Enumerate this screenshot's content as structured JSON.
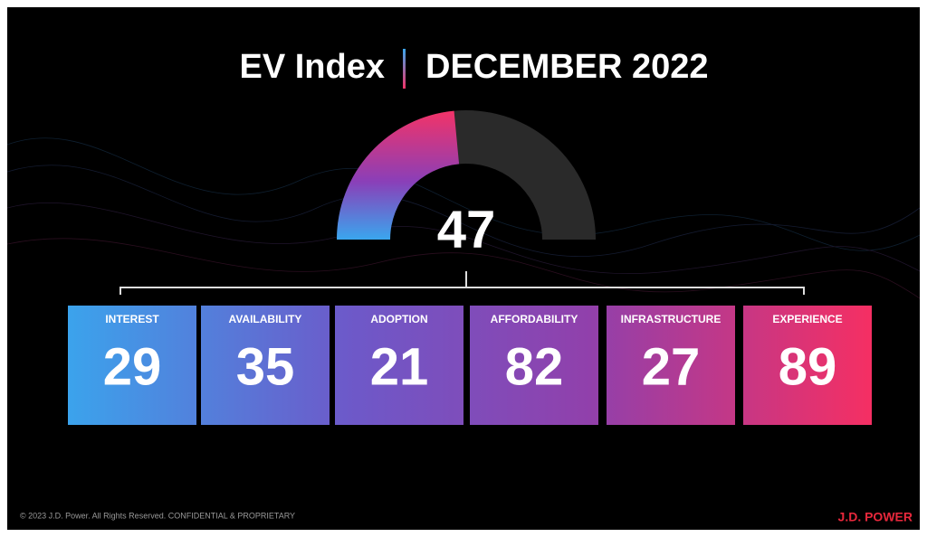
{
  "title": "EV Index",
  "subtitle": "DECEMBER 2022",
  "chart_data": {
    "type": "gauge",
    "value": 47,
    "ylim": [
      0,
      100
    ]
  },
  "tiles": [
    {
      "label": "INTEREST",
      "value": 29
    },
    {
      "label": "AVAILABILITY",
      "value": 35
    },
    {
      "label": "ADOPTION",
      "value": 21
    },
    {
      "label": "AFFORDABILITY",
      "value": 82
    },
    {
      "label": "INFRASTRUCTURE",
      "value": 27
    },
    {
      "label": "EXPERIENCE",
      "value": 89
    }
  ],
  "footer": "© 2023 J.D. Power. All Rights Reserved. CONFIDENTIAL & PROPRIETARY",
  "brand": "J.D. POWER"
}
